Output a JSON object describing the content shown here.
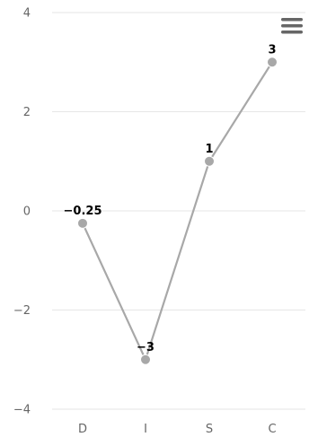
{
  "chart_data": {
    "type": "line",
    "categories": [
      "D",
      "I",
      "S",
      "C"
    ],
    "values": [
      -0.25,
      -3,
      1,
      3
    ],
    "data_labels": [
      "−0.25",
      "−3",
      "1",
      "3"
    ],
    "yticks": [
      4,
      2,
      0,
      -2,
      -4
    ],
    "ytick_labels": [
      "4",
      "2",
      "0",
      "−2",
      "−4"
    ],
    "ylim": [
      -4,
      4
    ],
    "grid": true,
    "legend": false,
    "series_color": "#a8a8a8"
  },
  "toolbar": {
    "menu_icon": "hamburger-menu-icon"
  }
}
